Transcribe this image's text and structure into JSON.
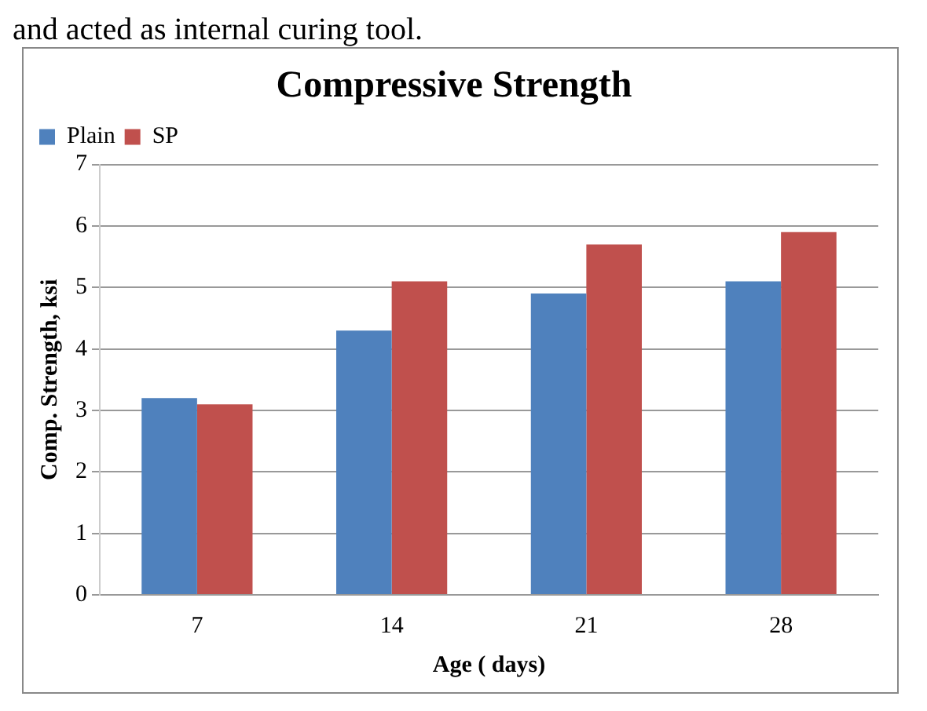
{
  "chart_data": {
    "type": "bar",
    "title": "Compressive Strength",
    "xlabel": "Age ( days)",
    "ylabel": "Comp. Strength, ksi",
    "annotations": [
      "and acted as internal curing tool."
    ],
    "categories": [
      "7",
      "14",
      "21",
      "28"
    ],
    "series": [
      {
        "name": "Plain",
        "color": "#4f81bd",
        "values": [
          3.2,
          4.3,
          4.9,
          5.1
        ]
      },
      {
        "name": "SP",
        "color": "#c0504d",
        "values": [
          3.1,
          5.1,
          5.7,
          5.9
        ]
      }
    ],
    "ylim": [
      0,
      7
    ],
    "yticks": [
      0,
      1,
      2,
      3,
      4,
      5,
      6,
      7
    ],
    "grid": "y",
    "legend": "top left"
  }
}
